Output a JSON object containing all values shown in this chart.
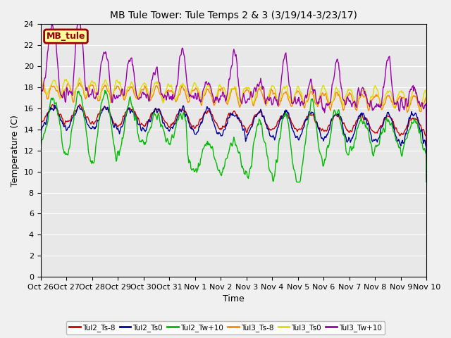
{
  "title": "MB Tule Tower: Tule Temps 2 & 3 (3/19/14-3/23/17)",
  "xlabel": "Time",
  "ylabel": "Temperature (C)",
  "ylim": [
    0,
    24
  ],
  "yticks": [
    0,
    2,
    4,
    6,
    8,
    10,
    12,
    14,
    16,
    18,
    20,
    22,
    24
  ],
  "xtick_labels": [
    "Oct 26",
    "Oct 27",
    "Oct 28",
    "Oct 29",
    "Oct 30",
    "Oct 31",
    "Nov 1",
    "Nov 2",
    "Nov 3",
    "Nov 4",
    "Nov 5",
    "Nov 6",
    "Nov 7",
    "Nov 8",
    "Nov 9",
    "Nov 10"
  ],
  "series_colors": {
    "Tul2_Ts-8": "#cc0000",
    "Tul2_Ts0": "#000099",
    "Tul2_Tw+10": "#00bb00",
    "Tul3_Ts-8": "#ff8800",
    "Tul3_Ts0": "#dddd00",
    "Tul3_Tw+10": "#9900aa"
  },
  "legend_label": "MB_tule",
  "legend_facecolor": "#ffff99",
  "legend_edgecolor": "#990000",
  "plot_bg": "#e8e8e8",
  "fig_bg": "#f0f0f0",
  "grid_color": "#ffffff",
  "title_fontsize": 10,
  "axis_fontsize": 9,
  "tick_fontsize": 8,
  "linewidth": 1.0
}
